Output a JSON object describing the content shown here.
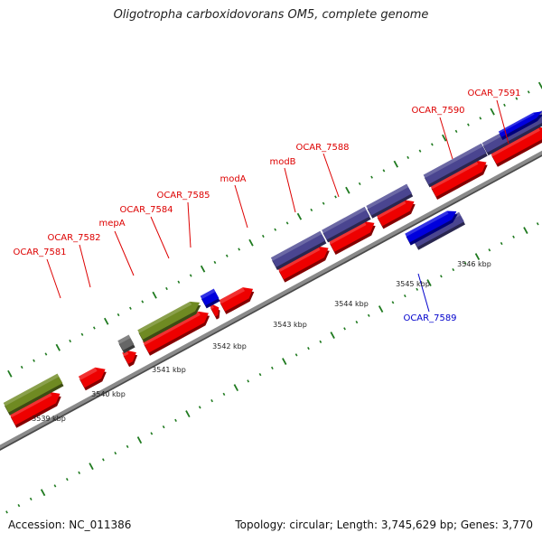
{
  "title": "Oligotropha carboxidovorans OM5, complete genome",
  "footer": {
    "accession": "Accession: NC_011386",
    "summary": "Topology: circular; Length: 3,745,629 bp; Genes: 3,770"
  },
  "colors": {
    "cds_red": "#ee0000",
    "gene_purple": "#4a4590",
    "gene_olive": "#6f8a22",
    "gene_blue": "#0000dd",
    "gene_grey": "#666666",
    "tick_green": "#1f7a1f",
    "backbone": "#8a8a8a",
    "label_red": "#dd0000",
    "label_blue": "#0000cc"
  },
  "scale_labels": [
    "3539 kbp",
    "3540 kbp",
    "3541 kbp",
    "3542 kbp",
    "3543 kbp",
    "3544 kbp",
    "3545 kbp",
    "3546 kbp"
  ],
  "gene_labels": [
    {
      "text": "OCAR_7581",
      "color": "red"
    },
    {
      "text": "OCAR_7582",
      "color": "red"
    },
    {
      "text": "mepA",
      "color": "red"
    },
    {
      "text": "OCAR_7584",
      "color": "red"
    },
    {
      "text": "OCAR_7585",
      "color": "red"
    },
    {
      "text": "modA",
      "color": "red"
    },
    {
      "text": "modB",
      "color": "red"
    },
    {
      "text": "OCAR_7588",
      "color": "red"
    },
    {
      "text": "OCAR_7589",
      "color": "blue"
    },
    {
      "text": "OCAR_7590",
      "color": "red"
    },
    {
      "text": "OCAR_7591",
      "color": "red"
    }
  ]
}
